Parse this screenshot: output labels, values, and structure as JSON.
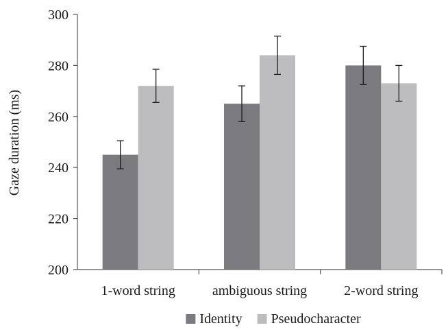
{
  "chart_data": {
    "type": "bar",
    "title": "",
    "xlabel": "",
    "ylabel": "Gaze duration (ms)",
    "ylim": [
      200,
      300
    ],
    "yticks": [
      200,
      220,
      240,
      260,
      280,
      300
    ],
    "categories": [
      "1-word string",
      "ambiguous string",
      "2-word string"
    ],
    "series": [
      {
        "name": "Identity",
        "color": "#7b7b7f",
        "values": [
          245,
          265,
          280
        ],
        "error": [
          5.5,
          7,
          7.5
        ]
      },
      {
        "name": "Pseudocharacter",
        "color": "#bdbdc0",
        "values": [
          272,
          284,
          273
        ],
        "error": [
          6.5,
          7.5,
          7
        ]
      }
    ],
    "legend_position": "bottom-center",
    "grid": false,
    "error_bars": true
  }
}
